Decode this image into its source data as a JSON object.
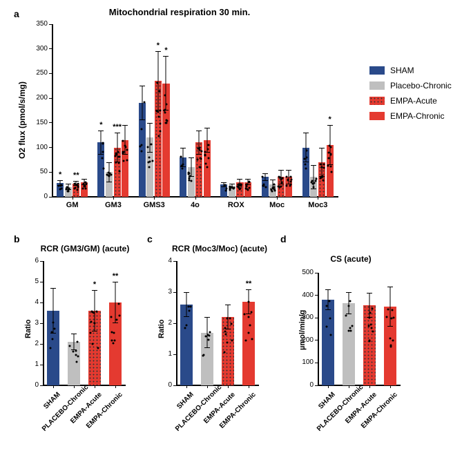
{
  "colors": {
    "sham": "#2a4a8a",
    "placebo": "#bfbfbf",
    "acute": "#e43a30",
    "chronic": "#e43a30",
    "bg": "#ffffff"
  },
  "legend": [
    {
      "label": "SHAM",
      "key": "sham"
    },
    {
      "label": "Placebo-Chronic",
      "key": "placebo"
    },
    {
      "label": "EMPA-Acute",
      "key": "acute"
    },
    {
      "label": "EMPA-Chronic",
      "key": "chronic"
    }
  ],
  "panel_a": {
    "label": "a",
    "title": "Mitochondrial respiration 30 min.",
    "ylabel": "O2 flux (pmol/s/mg)",
    "ylim": [
      0,
      350
    ],
    "ytick_step": 50,
    "categories": [
      "GM",
      "GM3",
      "GMS3",
      "4o",
      "ROX",
      "Moc",
      "Moc3"
    ],
    "series": [
      {
        "key": "sham",
        "values": [
          28,
          110,
          190,
          80,
          25,
          40,
          100
        ],
        "err": [
          5,
          25,
          35,
          20,
          5,
          8,
          30
        ]
      },
      {
        "key": "placebo",
        "values": [
          20,
          50,
          120,
          60,
          22,
          25,
          40
        ],
        "err": [
          6,
          20,
          30,
          20,
          5,
          10,
          25
        ]
      },
      {
        "key": "acute",
        "values": [
          27,
          100,
          235,
          110,
          30,
          40,
          70
        ],
        "err": [
          5,
          30,
          60,
          25,
          6,
          15,
          30
        ]
      },
      {
        "key": "chronic",
        "values": [
          30,
          115,
          230,
          115,
          30,
          40,
          105
        ],
        "err": [
          6,
          30,
          55,
          25,
          6,
          15,
          40
        ]
      }
    ],
    "sig": [
      {
        "cat": 0,
        "series": 0,
        "text": "*"
      },
      {
        "cat": 0,
        "series": 2,
        "text": "**"
      },
      {
        "cat": 1,
        "series": 0,
        "text": "*"
      },
      {
        "cat": 1,
        "series": 2,
        "text": "***"
      },
      {
        "cat": 2,
        "series": 2,
        "text": "*"
      },
      {
        "cat": 2,
        "series": 3,
        "text": "*"
      },
      {
        "cat": 6,
        "series": 3,
        "text": "*"
      }
    ]
  },
  "panel_b": {
    "label": "b",
    "title": "RCR (GM3/GM) (acute)",
    "ylabel": "Ratio",
    "ylim": [
      0,
      6
    ],
    "ytick_step": 1,
    "categories": [
      "SHAM",
      "PLACEBO-Chronic",
      "EMPA-Acute",
      "EMPA-Chronic"
    ],
    "series": [
      {
        "key": "sham",
        "value": 3.6,
        "err": 1.1
      },
      {
        "key": "placebo",
        "value": 2.1,
        "err": 0.4
      },
      {
        "key": "acute",
        "value": 3.6,
        "err": 1.0
      },
      {
        "key": "chronic",
        "value": 4.0,
        "err": 1.0
      }
    ],
    "sig": [
      {
        "idx": 2,
        "text": "*"
      },
      {
        "idx": 3,
        "text": "**"
      }
    ]
  },
  "panel_c": {
    "label": "c",
    "title": "RCR (Moc3/Moc) (acute)",
    "ylabel": "Ratio",
    "ylim": [
      0,
      4
    ],
    "ytick_step": 1,
    "categories": [
      "SHAM",
      "PLACEBO-Chronic",
      "EMPA-Acute",
      "EMPA-Chronic"
    ],
    "series": [
      {
        "key": "sham",
        "value": 2.6,
        "err": 0.4
      },
      {
        "key": "placebo",
        "value": 1.7,
        "err": 0.5
      },
      {
        "key": "acute",
        "value": 2.2,
        "err": 0.4
      },
      {
        "key": "chronic",
        "value": 2.7,
        "err": 0.4
      }
    ],
    "sig": [
      {
        "idx": 3,
        "text": "**"
      }
    ]
  },
  "panel_d": {
    "label": "d",
    "title": "CS (acute)",
    "ylabel": "µmol/min/g",
    "ylim": [
      0,
      500
    ],
    "ytick_step": 100,
    "categories": [
      "SHAM",
      "PLACEBO-Chronic",
      "EMPA-Acute",
      "EMPA-Chronic"
    ],
    "series": [
      {
        "key": "sham",
        "value": 380,
        "err": 45
      },
      {
        "key": "placebo",
        "value": 365,
        "err": 50
      },
      {
        "key": "acute",
        "value": 355,
        "err": 55
      },
      {
        "key": "chronic",
        "value": 350,
        "err": 90
      }
    ],
    "sig": []
  }
}
